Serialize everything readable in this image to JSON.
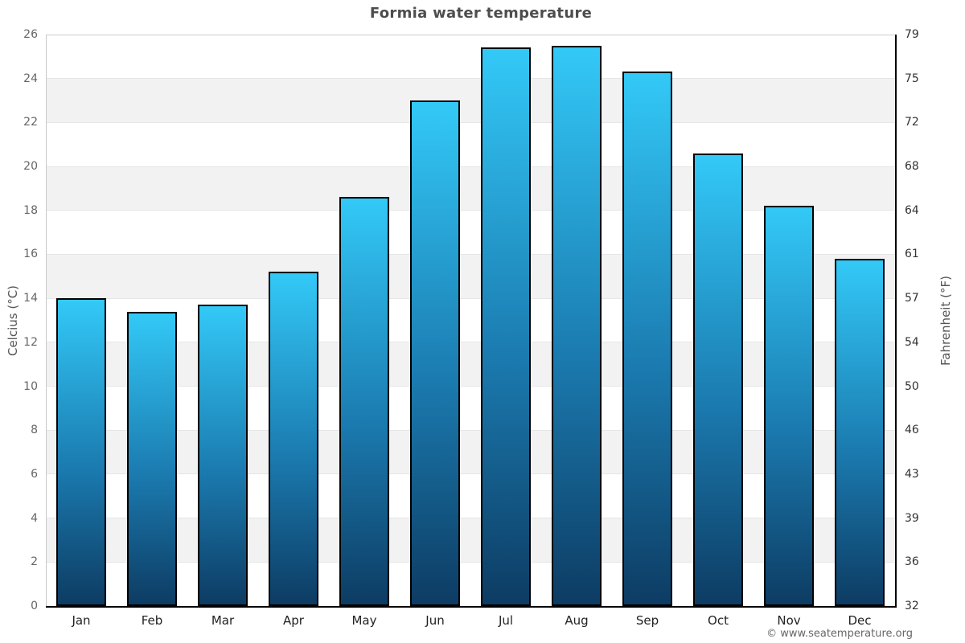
{
  "title": "Formia water temperature",
  "axes": {
    "left_title": "Celcius (°C)",
    "right_title": "Fahrenheit (°F)"
  },
  "footer": {
    "credit": "© www.seatemperature.org"
  },
  "colors": {
    "bar_gradient_top": "#33c9f7",
    "bar_gradient_bottom": "#0d3c63",
    "bar_border": "#000000",
    "band": "#f2f2f2",
    "gridline": "#e6e6e6",
    "top_gridline": "#cccccc",
    "left_axis_line": "#c9c9c9",
    "dark_axis_line": "#000000",
    "title_text": "#4d4d4d",
    "left_tick_text": "#666666",
    "right_tick_text": "#333333",
    "x_tick_text": "#222222",
    "credit_text": "#666666"
  },
  "chart_data": {
    "type": "bar",
    "title": "Formia water temperature",
    "categories": [
      "Jan",
      "Feb",
      "Mar",
      "Apr",
      "May",
      "Jun",
      "Jul",
      "Aug",
      "Sep",
      "Oct",
      "Nov",
      "Dec"
    ],
    "values": [
      14.0,
      13.4,
      13.7,
      15.2,
      18.6,
      23.0,
      25.4,
      25.5,
      24.3,
      20.6,
      18.2,
      15.8
    ],
    "series_name": "Water temperature (°C)",
    "ylabel_left": "Celcius (°C)",
    "ylabel_right": "Fahrenheit (°F)",
    "ylim_celsius": [
      0,
      26
    ],
    "celsius_ticks": [
      0,
      2,
      4,
      6,
      8,
      10,
      12,
      14,
      16,
      18,
      20,
      22,
      24,
      26
    ],
    "fahrenheit_tick_labels": [
      "32",
      "36",
      "39",
      "43",
      "46",
      "50",
      "54",
      "57",
      "61",
      "64",
      "68",
      "72",
      "75",
      "79"
    ],
    "grid": "alternating-horizontal-bands",
    "legend": "none",
    "xlabel": ""
  }
}
